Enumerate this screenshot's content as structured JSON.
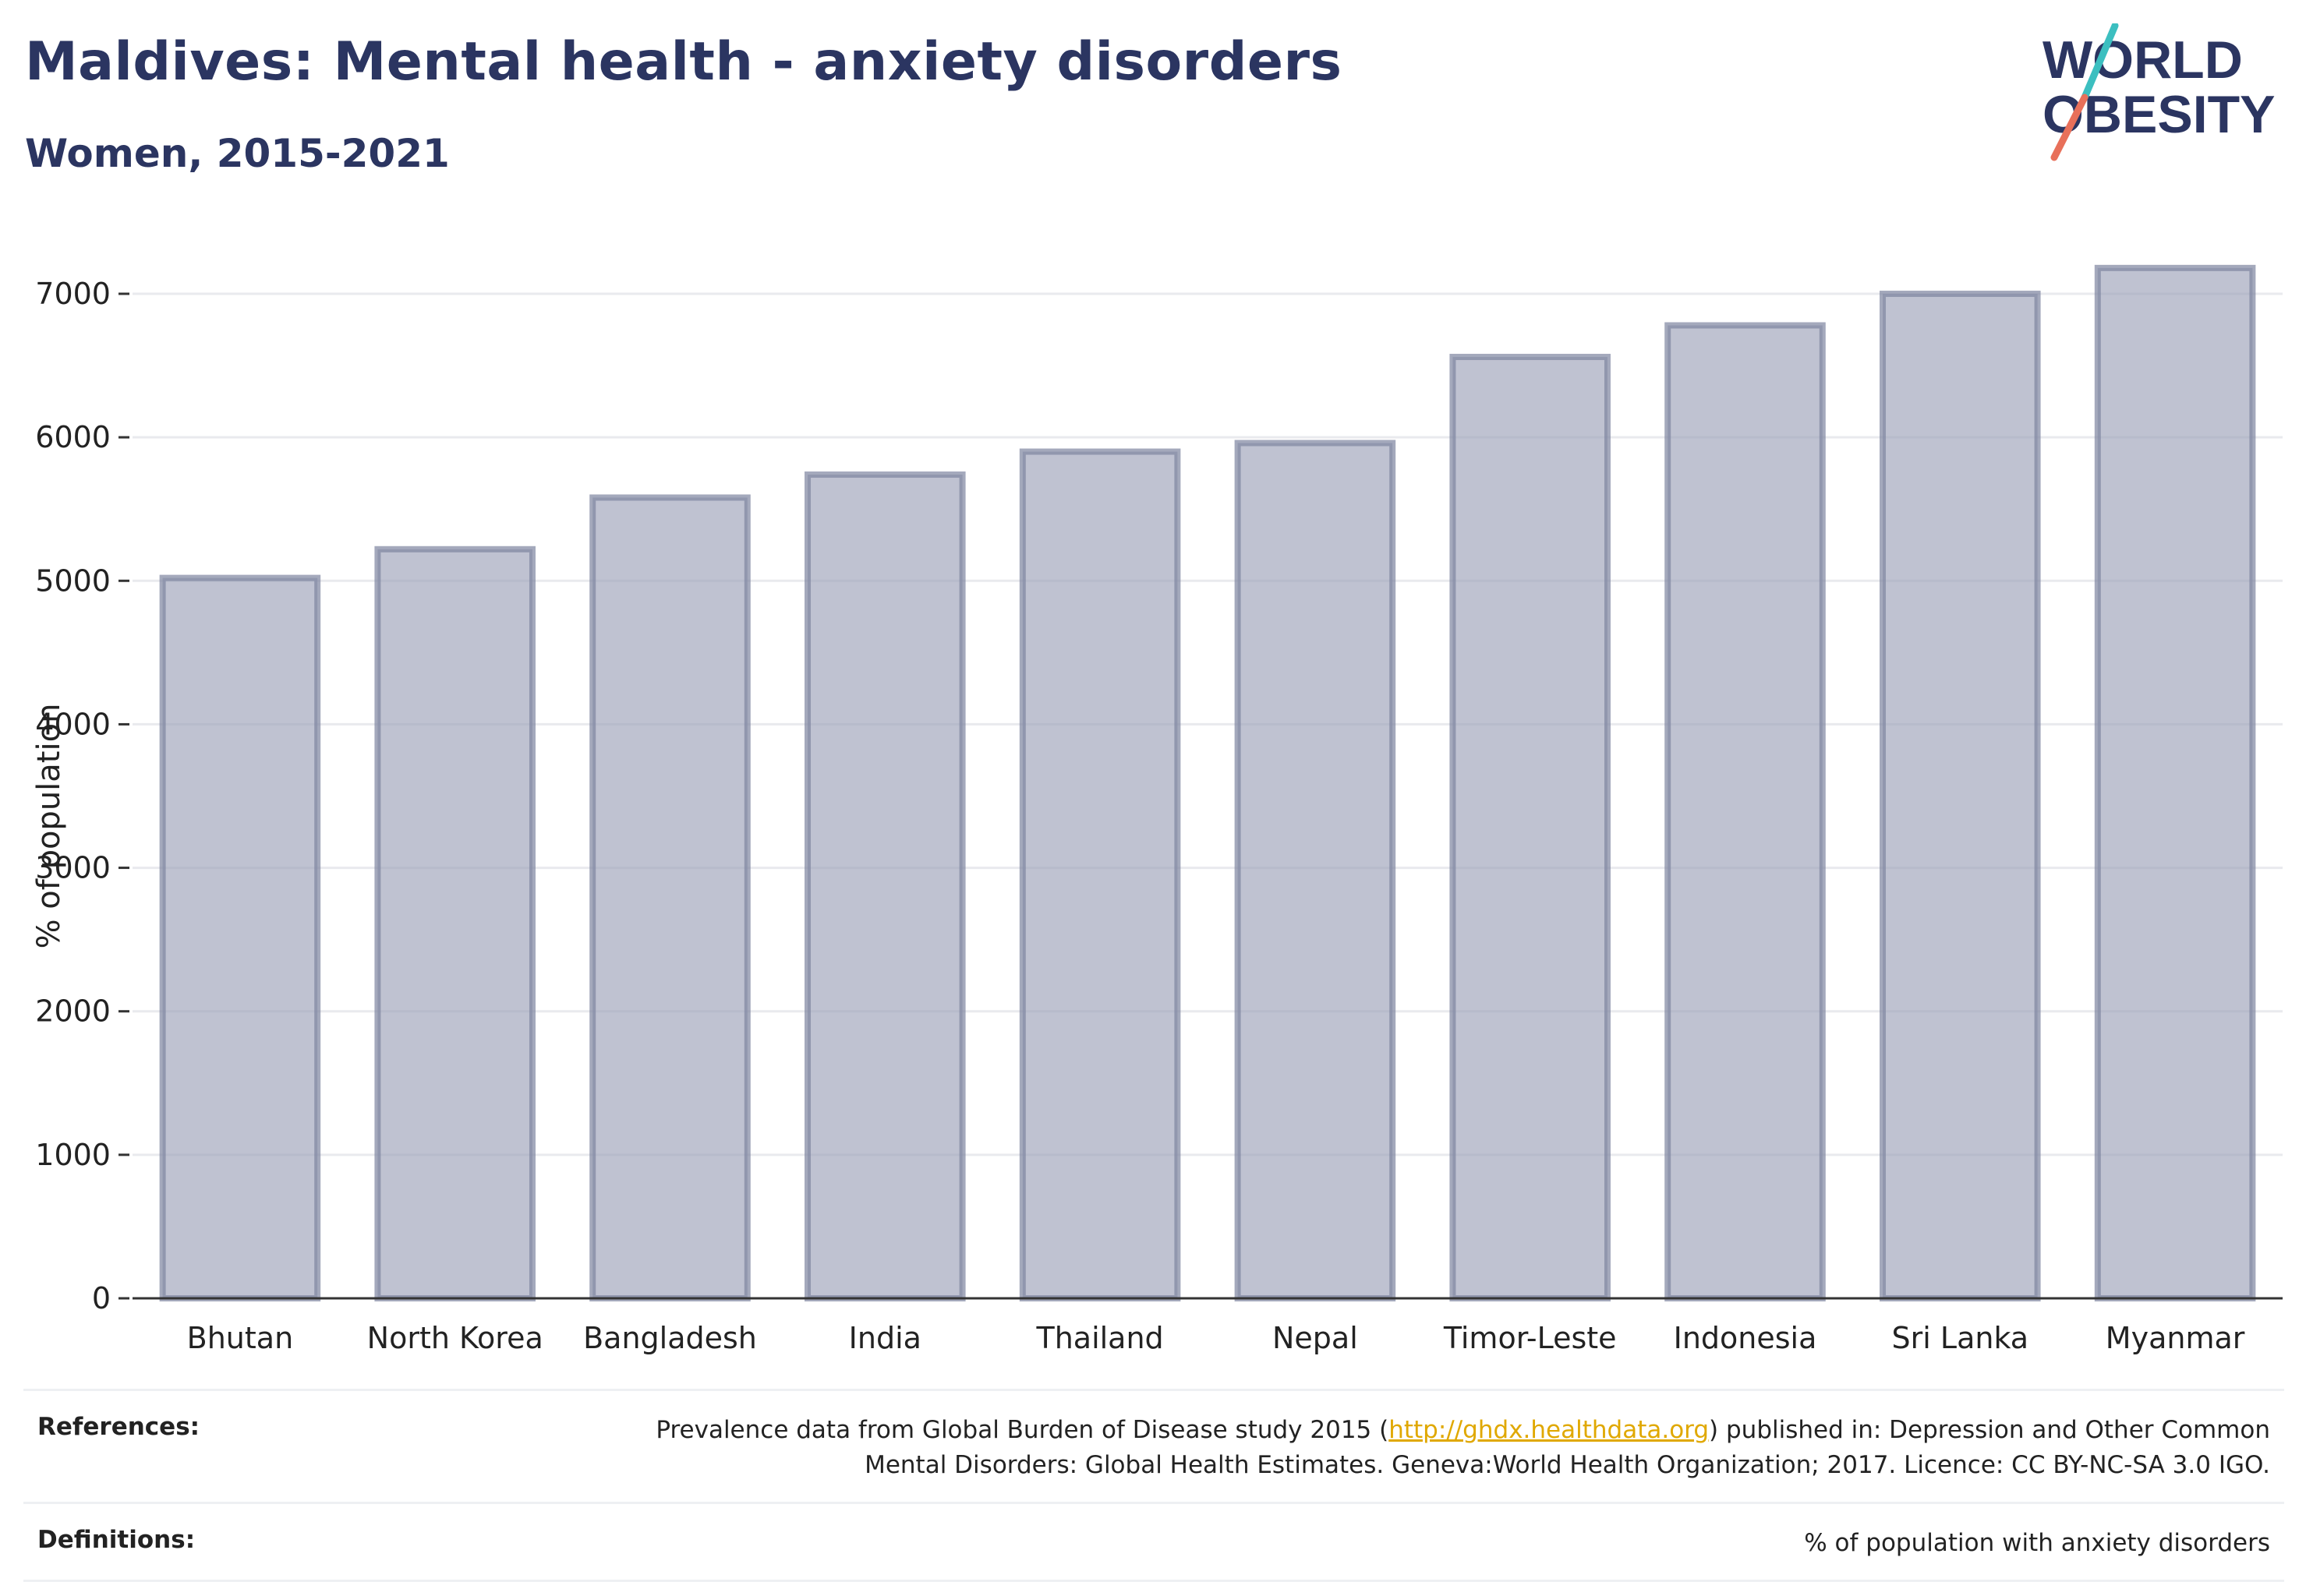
{
  "title": "Maldives: Mental health - anxiety disorders",
  "subtitle": "Women, 2015-2021",
  "logo": {
    "line1": "WORLD",
    "line2": "OBESITY",
    "text_color": "#2b3561",
    "slash_top_color": "#3cbfc0",
    "slash_bottom_color": "#e8705a"
  },
  "chart_data": {
    "type": "bar",
    "categories": [
      "Bhutan",
      "North Korea",
      "Bangladesh",
      "India",
      "Thailand",
      "Nepal",
      "Timor-Leste",
      "Indonesia",
      "Sri Lanka",
      "Myanmar"
    ],
    "values": [
      5020,
      5220,
      5580,
      5740,
      5900,
      5960,
      6560,
      6780,
      7000,
      7180
    ],
    "ylabel": "% of population",
    "xlabel": "",
    "ylim": [
      0,
      7500
    ],
    "yticks": [
      0,
      1000,
      2000,
      3000,
      4000,
      5000,
      6000,
      7000
    ],
    "grid": true,
    "bar_color": "#9ca2b8",
    "bar_edge_color": "#7e84a0"
  },
  "footer": {
    "references_label": "References:",
    "references_text_before": "Prevalence data from Global Burden of Disease study 2015 (",
    "references_link": "http://ghdx.healthdata.org",
    "references_text_after": ") published in: Depression and Other Common",
    "references_text_line2": "Mental Disorders: Global Health Estimates. Geneva:World Health Organization; 2017. Licence: CC BY-NC-SA 3.0 IGO.",
    "definitions_label": "Definitions:",
    "definitions_text": "% of population with anxiety disorders"
  }
}
